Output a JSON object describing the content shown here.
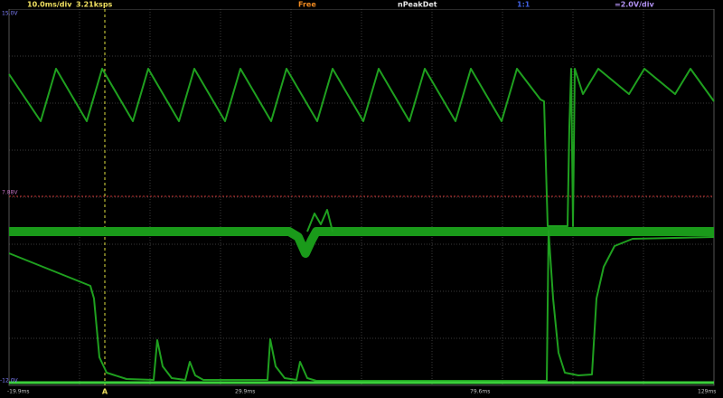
{
  "status_bar": {
    "timebase": "10.0ms/div",
    "sample_rate": "3.21ksps",
    "trigger_mode": "Free",
    "acquisition": "nPeakDet",
    "probe": "1:1",
    "vertical_scale": "=2.0V/div"
  },
  "axis_labels": {
    "top": "15.0V",
    "trigger_level": "7.88V",
    "bottom": "-12.0V"
  },
  "time_labels": [
    "-19.9ms",
    "29.9ms",
    "79.6ms",
    "129ms"
  ],
  "trigger_marker": "A"
}
